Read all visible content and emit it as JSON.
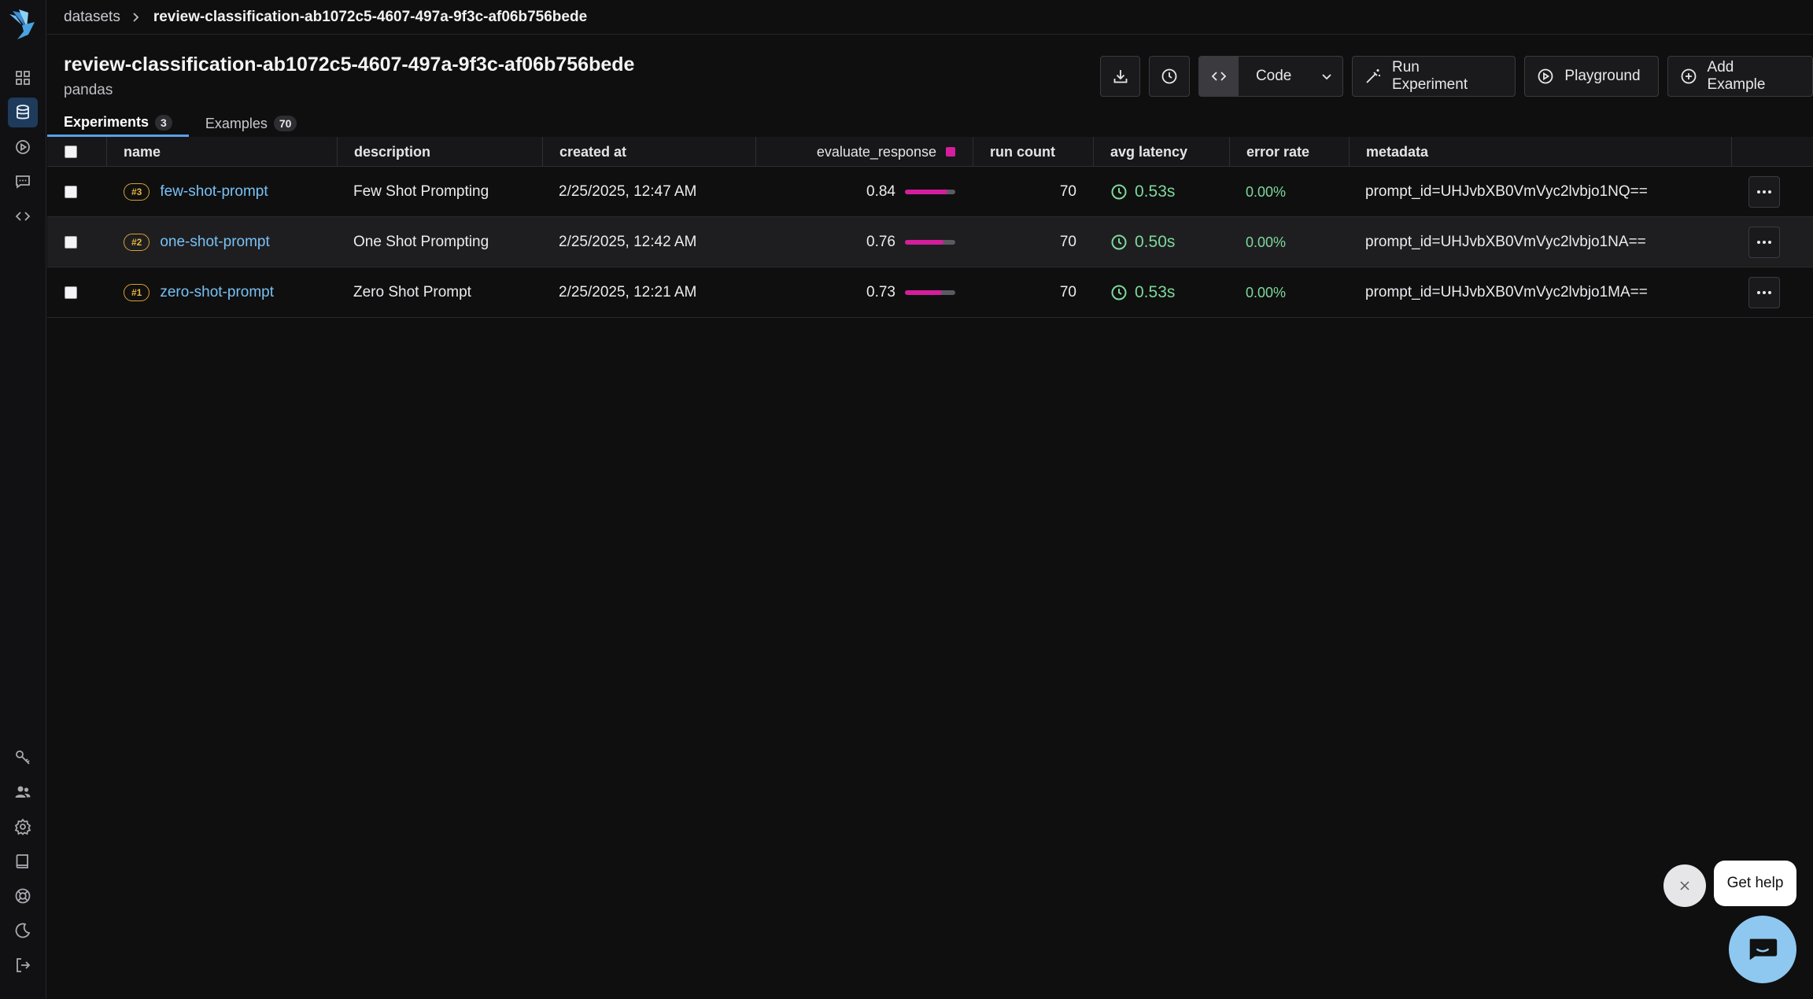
{
  "breadcrumb": {
    "parent": "datasets",
    "current": "review-classification-ab1072c5-4607-497a-9f3c-af06b756bede"
  },
  "header": {
    "title": "review-classification-ab1072c5-4607-497a-9f3c-af06b756bede",
    "subtitle": "pandas"
  },
  "toolbar": {
    "code_label": "Code",
    "run_experiment_label": "Run Experiment",
    "playground_label": "Playground",
    "add_example_label": "Add Example"
  },
  "tabs": [
    {
      "label": "Experiments",
      "count": "3",
      "active": true
    },
    {
      "label": "Examples",
      "count": "70",
      "active": false
    }
  ],
  "table": {
    "columns": [
      "name",
      "description",
      "created at",
      "evaluate_response",
      "run count",
      "avg latency",
      "error rate",
      "metadata"
    ],
    "rows": [
      {
        "seq": "#3",
        "name": "few-shot-prompt",
        "description": "Few Shot Prompting",
        "created_at": "2/25/2025, 12:47 AM",
        "score": "0.84",
        "score_fraction": 0.84,
        "run_count": "70",
        "avg_latency": "0.53s",
        "error_rate": "0.00%",
        "metadata": "prompt_id=UHJvbXB0VmVyc2lvbjo1NQ=="
      },
      {
        "seq": "#2",
        "name": "one-shot-prompt",
        "description": "One Shot Prompting",
        "created_at": "2/25/2025, 12:42 AM",
        "score": "0.76",
        "score_fraction": 0.76,
        "run_count": "70",
        "avg_latency": "0.50s",
        "error_rate": "0.00%",
        "metadata": "prompt_id=UHJvbXB0VmVyc2lvbjo1NA=="
      },
      {
        "seq": "#1",
        "name": "zero-shot-prompt",
        "description": "Zero Shot Prompt",
        "created_at": "2/25/2025, 12:21 AM",
        "score": "0.73",
        "score_fraction": 0.73,
        "run_count": "70",
        "avg_latency": "0.53s",
        "error_rate": "0.00%",
        "metadata": "prompt_id=UHJvbXB0VmVyc2lvbjo1MA=="
      }
    ]
  },
  "help": {
    "bubble_label": "Get help"
  },
  "colors": {
    "accent": "#5aa0e6",
    "score_bar": "#d51e9c",
    "success": "#7ed99a",
    "link": "#79c1f2",
    "badge": "#d8a12d"
  },
  "icons": {
    "sidebar_top": [
      "grid-icon",
      "database-icon",
      "play-circle-icon",
      "message-icon",
      "code-icon"
    ],
    "sidebar_bottom": [
      "key-icon",
      "users-icon",
      "settings-icon",
      "book-icon",
      "lifebuoy-icon",
      "moon-icon",
      "logout-icon"
    ]
  }
}
